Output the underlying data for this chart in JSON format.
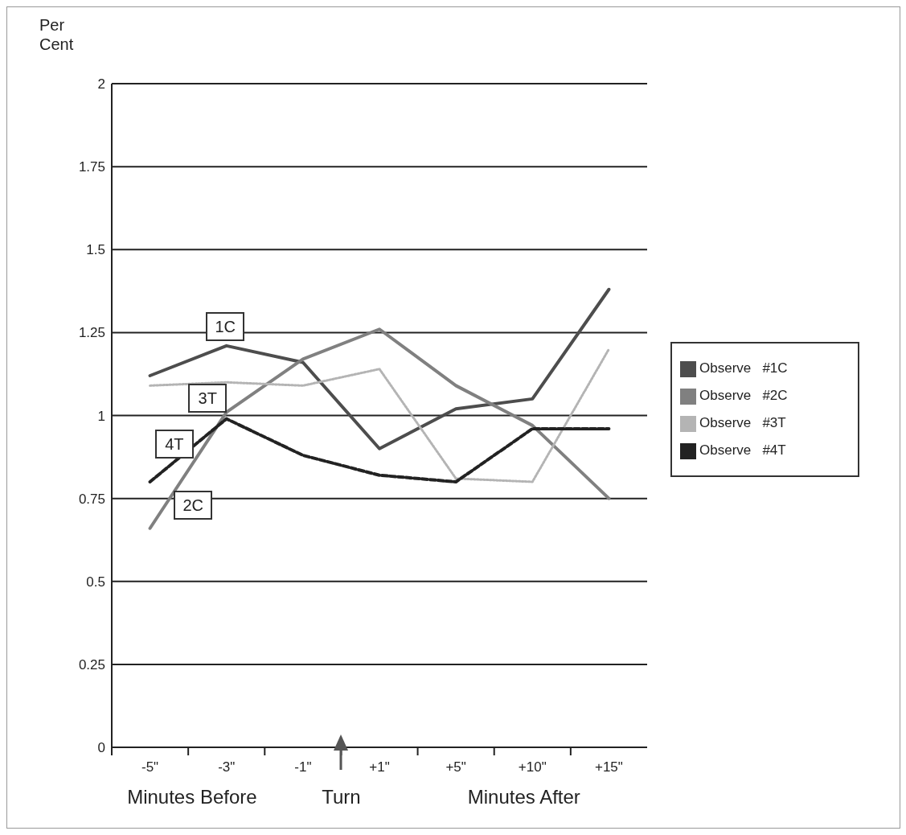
{
  "chart_data": {
    "type": "line",
    "ylabel": "Per Cent",
    "xlabel": "Turn",
    "categories": [
      "-5\"",
      "-3\"",
      "-1\"",
      "+1\"",
      "+5\"",
      "+10\"",
      "+15\""
    ],
    "series": [
      {
        "name": "Observe   #1C",
        "color": "#4d4d4d",
        "line_style": "solid",
        "values": [
          1.12,
          1.21,
          1.16,
          0.9,
          1.02,
          1.05,
          1.38
        ]
      },
      {
        "name": "Observe   #2C",
        "color": "#808080",
        "line_style": "solid",
        "values": [
          0.66,
          1.01,
          1.17,
          1.26,
          1.09,
          0.97,
          0.75
        ]
      },
      {
        "name": "Observe   #3T",
        "color": "#b4b4b4",
        "line_style": "dotted",
        "values": [
          1.09,
          1.1,
          1.09,
          1.14,
          0.81,
          0.8,
          1.2
        ]
      },
      {
        "name": "Observe   #4T",
        "color": "#222222",
        "line_style": "dashed",
        "values": [
          0.8,
          0.99,
          0.88,
          0.82,
          0.8,
          0.96,
          0.96
        ]
      }
    ],
    "ylim": [
      0,
      2
    ],
    "yticks": [
      0,
      0.25,
      0.5,
      0.75,
      1,
      1.25,
      1.5,
      1.75,
      2
    ],
    "grid": "y",
    "legend": "right",
    "marker": "none",
    "annotations": [
      "1C",
      "3T",
      "4T",
      "2C",
      "Minutes Before",
      "Minutes After"
    ]
  }
}
